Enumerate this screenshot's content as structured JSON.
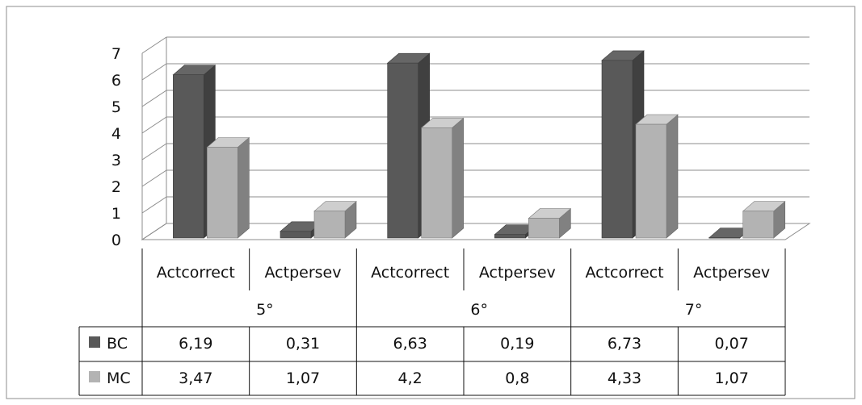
{
  "chart_data": {
    "type": "bar",
    "categories": [
      "Actcorrect",
      "Actpersev",
      "Actcorrect",
      "Actpersev",
      "Actcorrect",
      "Actpersev"
    ],
    "groups": [
      "5°",
      "6°",
      "7°"
    ],
    "series": [
      {
        "name": "BC",
        "values": [
          6.19,
          0.31,
          6.63,
          0.19,
          6.73,
          0.07
        ],
        "labels": [
          "6,19",
          "0,31",
          "6,63",
          "0,19",
          "6,73",
          "0,07"
        ]
      },
      {
        "name": "MC",
        "values": [
          3.47,
          1.07,
          4.2,
          0.8,
          4.33,
          1.07
        ],
        "labels": [
          "3,47",
          "1,07",
          "4,2",
          "0,8",
          "4,33",
          "1,07"
        ]
      }
    ],
    "y_ticks": [
      "0",
      "1",
      "2",
      "3",
      "4",
      "5",
      "6",
      "7"
    ],
    "ylim": [
      0,
      7
    ],
    "grid": true,
    "style": "3d-clustered-column",
    "legend": "data-table-left",
    "colors": {
      "BC": "#595959",
      "MC": "#b3b3b3"
    }
  }
}
